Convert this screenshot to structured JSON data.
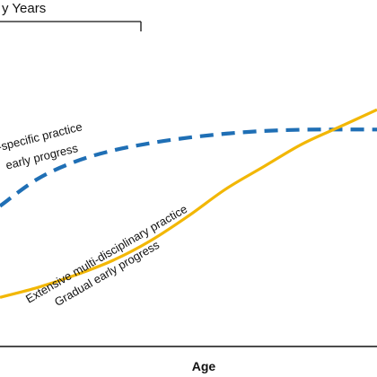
{
  "chart_data": {
    "type": "line",
    "title": "",
    "xlabel": "Age",
    "ylabel": "",
    "xlim": [
      0,
      100
    ],
    "ylim": [
      0,
      100
    ],
    "grid": false,
    "bracket_label": "y Years",
    "series": [
      {
        "key": "specialized",
        "labels": [
          "-specific practice",
          "early progress"
        ],
        "color": "#1f6fb5",
        "style": "dashed",
        "x": [
          0,
          10,
          20,
          30,
          40,
          50,
          60,
          70,
          80,
          90,
          100
        ],
        "y": [
          42,
          53,
          60,
          64.5,
          67.5,
          69.7,
          71.3,
          72.4,
          72.9,
          73,
          73
        ]
      },
      {
        "key": "diversified",
        "labels": [
          "Extensive multi-disciplinary practice",
          "Gradual early progress"
        ],
        "color": "#f2b705",
        "style": "solid",
        "x": [
          0,
          10,
          20,
          30,
          40,
          50,
          60,
          70,
          80,
          90,
          100
        ],
        "y": [
          5,
          9,
          14,
          20,
          28,
          38,
          49,
          58,
          67,
          74,
          81
        ]
      }
    ]
  }
}
